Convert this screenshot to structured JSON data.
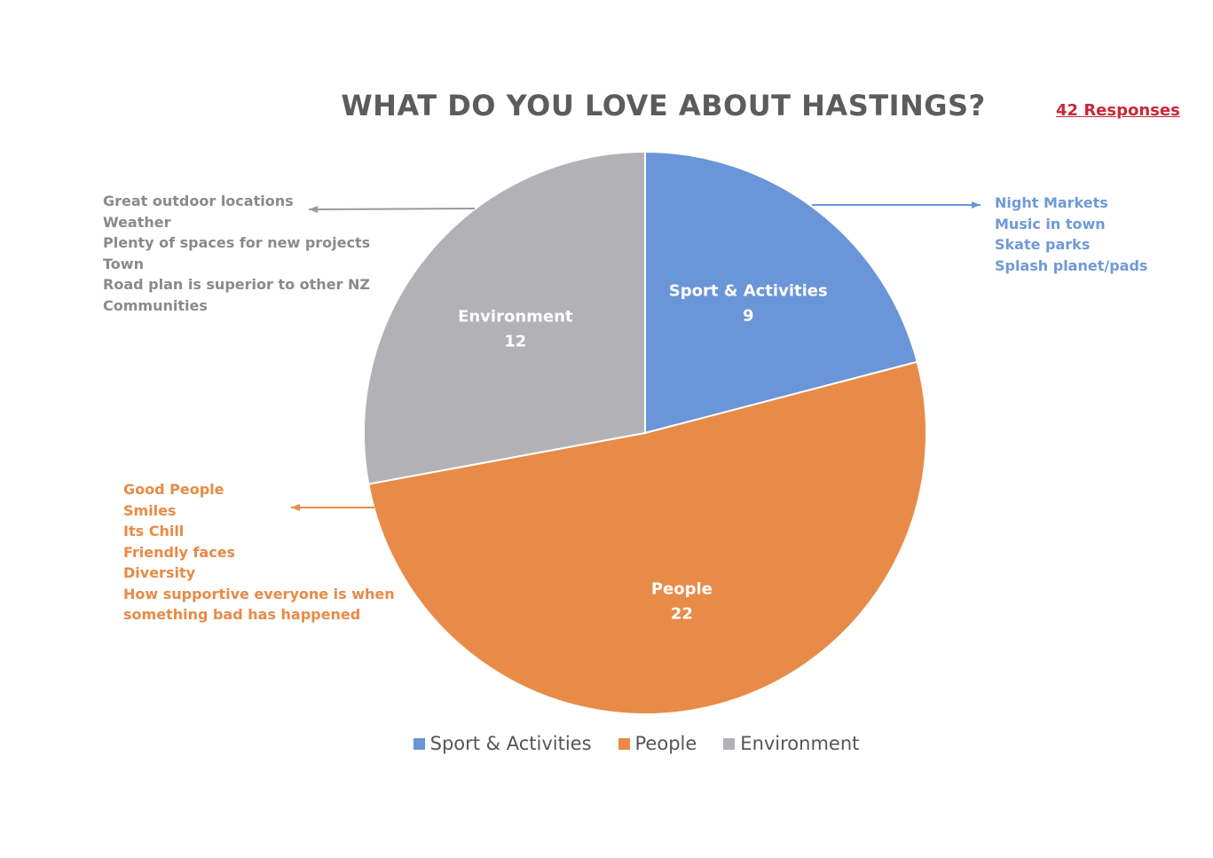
{
  "chart_data": {
    "type": "pie",
    "title": "WHAT DO YOU LOVE ABOUT HASTINGS?",
    "subtitle": "42 Responses",
    "slices": [
      {
        "label": "Sport & Activities",
        "value": 9,
        "color": "#6a95d8"
      },
      {
        "label": "People",
        "value": 22,
        "color": "#e98b48"
      },
      {
        "label": "Environment",
        "value": 12,
        "color": "#b2b2b6"
      }
    ],
    "legend": [
      "Sport & Activities",
      "People",
      "Environment"
    ],
    "legend_position": "bottom",
    "annotations": {
      "sport": [
        "Night Markets",
        "Music in town",
        "Skate parks",
        "Splash planet/pads"
      ],
      "environment": [
        "Great outdoor locations",
        "Weather",
        "Plenty of spaces for new projects",
        "Town",
        "Road plan is superior to other NZ",
        "Communities"
      ],
      "people": [
        "Good People",
        "Smiles",
        "Its Chill",
        "Friendly faces",
        "Diversity",
        "How supportive everyone is when",
        "something bad has happened"
      ]
    }
  }
}
